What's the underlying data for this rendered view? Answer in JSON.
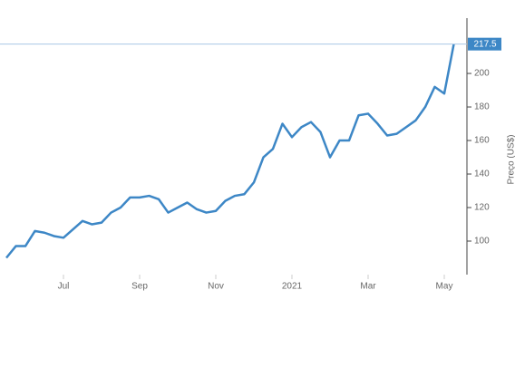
{
  "chart_data": {
    "type": "line",
    "y_label": "Preço (US$)",
    "categories": [
      null,
      null,
      null,
      null,
      null,
      null,
      "Jul",
      null,
      null,
      null,
      null,
      null,
      null,
      null,
      "Sep",
      null,
      null,
      null,
      null,
      null,
      null,
      null,
      "Nov",
      null,
      null,
      null,
      null,
      null,
      null,
      null,
      "2021",
      null,
      null,
      null,
      null,
      null,
      null,
      null,
      "Mar",
      null,
      null,
      null,
      null,
      null,
      null,
      null,
      "May",
      null
    ],
    "series": [
      {
        "name": "Preço",
        "color": "#3d87c6",
        "values": [
          90,
          97,
          97,
          106,
          105,
          103,
          102,
          107,
          112,
          110,
          111,
          117,
          120,
          126,
          126,
          127,
          125,
          117,
          120,
          123,
          119,
          117,
          118,
          124,
          127,
          128,
          135,
          150,
          155,
          170,
          162,
          168,
          171,
          165,
          150,
          160,
          160,
          175,
          176,
          170,
          163,
          164,
          168,
          172,
          180,
          192,
          188,
          217.5
        ]
      }
    ],
    "ylim": [
      80,
      233
    ],
    "yticks": [
      100,
      120,
      140,
      160,
      180,
      200
    ],
    "grid": false,
    "last_value_marker": true
  }
}
